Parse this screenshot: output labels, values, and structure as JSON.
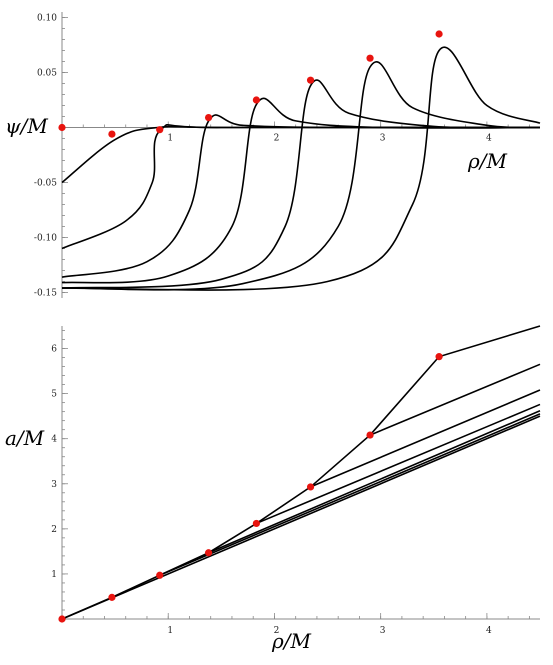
{
  "chart_data": [
    {
      "type": "line",
      "xlabel": "ρ/M",
      "ylabel": "ψ/M",
      "xlim": [
        0,
        4.5
      ],
      "ylim": [
        -0.155,
        0.105
      ],
      "x_ticks": [
        1,
        2,
        3,
        4
      ],
      "x_tick_labels": [
        "1",
        "2",
        "3",
        "4"
      ],
      "y_ticks": [
        -0.15,
        -0.1,
        -0.05,
        0.05,
        0.1
      ],
      "y_tick_labels": [
        "-0.15",
        "-0.10",
        "-0.05",
        "0.05",
        "0.10"
      ],
      "series": [
        {
          "points": [
            [
              0,
              -0.05
            ],
            [
              0.5,
              -0.011
            ],
            [
              0.9,
              0.0
            ],
            [
              1.6,
              0.0
            ],
            [
              4.5,
              0.0
            ]
          ],
          "peak": 0.5
        },
        {
          "points": [
            [
              0,
              -0.11
            ],
            [
              0.6,
              -0.085
            ],
            [
              0.85,
              -0.05
            ],
            [
              0.93,
              -0.002
            ],
            [
              1.5,
              0.0
            ],
            [
              4.5,
              0.0
            ]
          ],
          "peak": 0.93
        },
        {
          "points": [
            [
              0,
              -0.136
            ],
            [
              0.8,
              -0.122
            ],
            [
              1.2,
              -0.075
            ],
            [
              1.38,
              0.006
            ],
            [
              1.7,
              0.002
            ],
            [
              2.5,
              0.0
            ],
            [
              4.5,
              0.0
            ]
          ],
          "peak": 1.38
        },
        {
          "points": [
            [
              0,
              -0.141
            ],
            [
              1.0,
              -0.135
            ],
            [
              1.6,
              -0.09
            ],
            [
              1.83,
              0.021
            ],
            [
              2.2,
              0.006
            ],
            [
              3.0,
              0.0
            ],
            [
              4.5,
              0.0
            ]
          ],
          "peak": 1.83
        },
        {
          "points": [
            [
              0,
              -0.146
            ],
            [
              1.5,
              -0.138
            ],
            [
              2.1,
              -0.09
            ],
            [
              2.34,
              0.038
            ],
            [
              2.7,
              0.013
            ],
            [
              3.5,
              0.001
            ],
            [
              4.5,
              0.0
            ]
          ],
          "peak": 2.34
        },
        {
          "points": [
            [
              0,
              -0.146
            ],
            [
              1.7,
              -0.142
            ],
            [
              2.6,
              -0.09
            ],
            [
              2.9,
              0.055
            ],
            [
              3.3,
              0.018
            ],
            [
              4.0,
              0.002
            ],
            [
              4.5,
              0.0
            ]
          ],
          "peak": 2.9
        },
        {
          "points": [
            [
              0,
              -0.146
            ],
            [
              2.5,
              -0.14
            ],
            [
              3.3,
              -0.07
            ],
            [
              3.55,
              0.07
            ],
            [
              4.0,
              0.02
            ],
            [
              4.5,
              0.004
            ]
          ],
          "peak": 3.55
        }
      ],
      "markers": [
        [
          0,
          0
        ],
        [
          0.47,
          -0.006
        ],
        [
          0.92,
          -0.002
        ],
        [
          1.38,
          0.009
        ],
        [
          1.83,
          0.025
        ],
        [
          2.34,
          0.043
        ],
        [
          2.9,
          0.063
        ],
        [
          3.55,
          0.085
        ]
      ]
    },
    {
      "type": "line",
      "xlabel": "ρ/M",
      "ylabel": "a/M",
      "xlim": [
        0,
        4.5
      ],
      "ylim": [
        0,
        6.5
      ],
      "x_ticks": [
        1,
        2,
        3,
        4
      ],
      "x_tick_labels": [
        "1",
        "2",
        "3",
        "4"
      ],
      "y_ticks": [
        1,
        2,
        3,
        4,
        5,
        6
      ],
      "y_tick_labels": [
        "1",
        "2",
        "3",
        "4",
        "5",
        "6"
      ],
      "series": [
        {
          "points": [
            [
              0,
              0
            ],
            [
              0.47,
              0.48
            ],
            [
              0.92,
              0.97
            ],
            [
              1.38,
              1.47
            ],
            [
              1.83,
              2.12
            ],
            [
              2.34,
              2.93
            ],
            [
              2.9,
              4.08
            ],
            [
              3.55,
              5.82
            ],
            [
              4.5,
              6.5
            ]
          ]
        },
        {
          "points": [
            [
              2.9,
              4.08
            ],
            [
              4.5,
              5.65
            ]
          ]
        },
        {
          "points": [
            [
              2.34,
              2.93
            ],
            [
              4.5,
              5.08
            ]
          ]
        },
        {
          "points": [
            [
              1.83,
              2.12
            ],
            [
              4.5,
              4.76
            ]
          ]
        },
        {
          "points": [
            [
              1.38,
              1.47
            ],
            [
              4.5,
              4.62
            ]
          ]
        },
        {
          "points": [
            [
              0.92,
              0.97
            ],
            [
              4.5,
              4.55
            ]
          ]
        },
        {
          "points": [
            [
              0,
              0
            ],
            [
              4.5,
              4.5
            ]
          ]
        }
      ],
      "markers": [
        [
          0,
          0
        ],
        [
          0.47,
          0.48
        ],
        [
          0.92,
          0.97
        ],
        [
          1.38,
          1.47
        ],
        [
          1.83,
          2.12
        ],
        [
          2.34,
          2.93
        ],
        [
          2.9,
          4.08
        ],
        [
          3.55,
          5.82
        ]
      ]
    }
  ]
}
